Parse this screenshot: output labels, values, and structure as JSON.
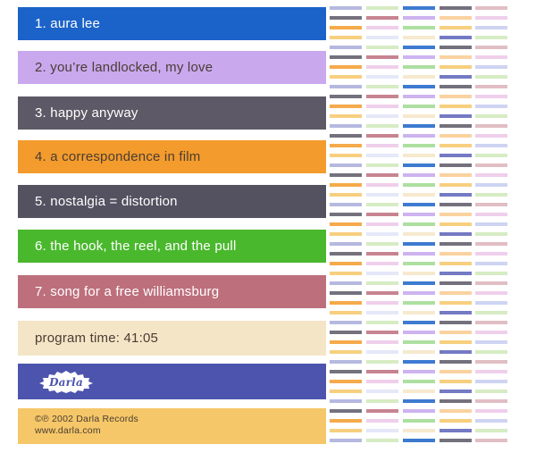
{
  "album_back_cover": {
    "tracks": [
      {
        "label": "1. aura lee",
        "color": "#1b63c8",
        "text": "light"
      },
      {
        "label": "2. you’re landlocked, my love",
        "color": "#c9a8ee",
        "text": "dark"
      },
      {
        "label": "3. happy anyway",
        "color": "#5d5966",
        "text": "light"
      },
      {
        "label": "4. a correspondence in film",
        "color": "#f39b2c",
        "text": "dark"
      },
      {
        "label": "5. nostalgia = distortion",
        "color": "#545261",
        "text": "light"
      },
      {
        "label": "6. the hook, the reel, and the pull",
        "color": "#4ab82d",
        "text": "light"
      },
      {
        "label": "7. song for a free williamsburg",
        "color": "#bd6f7c",
        "text": "light"
      }
    ],
    "program_time": {
      "label": "program time: 41:05",
      "color": "#f4e5c6"
    },
    "label_logo": {
      "text": "Darla",
      "color": "#4d54ad",
      "mark_color": "#ffffff"
    },
    "copyright": {
      "line1": "©℗ 2002 Darla Records",
      "line2": "www.darla.com",
      "color": "#f6c768"
    }
  },
  "palette": {
    "blue": "#1b63c8",
    "lavender": "#c4a6ec",
    "slate": "#5c5866",
    "orange": "#f39b2c",
    "green": "#4ab82d",
    "rose": "#bd6f7c",
    "cream": "#f4e5c6",
    "indigo": "#5c63b8",
    "gold": "#f6c768",
    "pale_green": "#cfe9b8",
    "pale_pink": "#ecc7e8",
    "pale_blue": "#c6cdf0"
  }
}
